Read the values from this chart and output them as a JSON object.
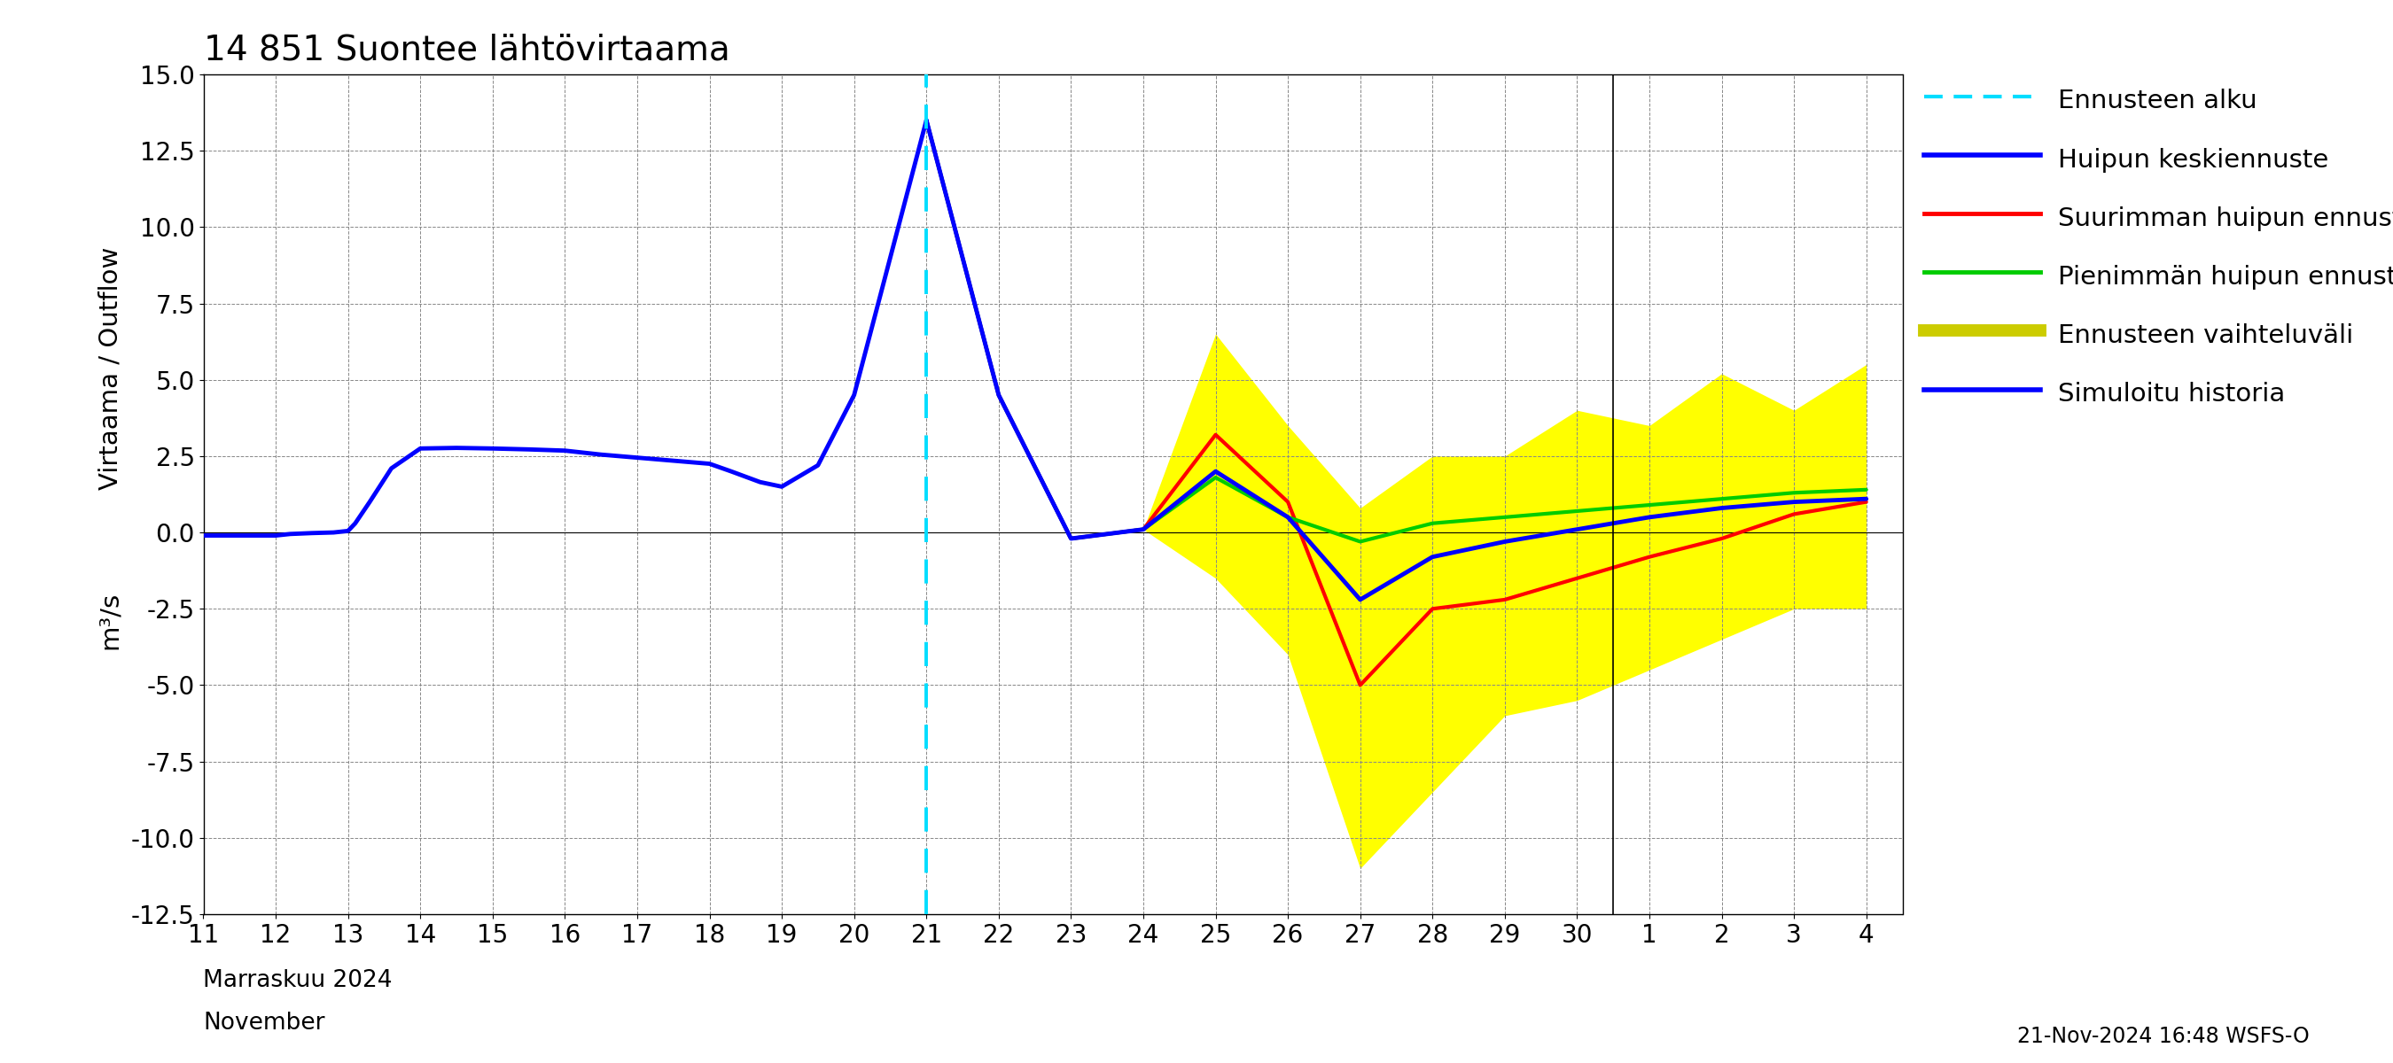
{
  "title": "14 851 Suontee lähtövirtaama",
  "ylabel1": "Virtaama / Outflow",
  "ylabel2": "m³/s",
  "xlabel_line1": "Marraskuu 2024",
  "xlabel_line2": "November",
  "bottom_right_text": "21-Nov-2024 16:48 WSFS-O",
  "ylim": [
    -12.5,
    15.0
  ],
  "yticks": [
    -12.5,
    -10.0,
    -7.5,
    -5.0,
    -2.5,
    0.0,
    2.5,
    5.0,
    7.5,
    10.0,
    12.5,
    15.0
  ],
  "forecast_start_x": 21,
  "legend_entries": [
    "Ennusteen alku",
    "Huipun keskiennuste",
    "Suurimman huipun ennuste",
    "Pienimmän huipun ennuste",
    "Ennusteen vaihteluväli",
    "Simuloitu historia"
  ],
  "history_color": "#0000ff",
  "mean_forecast_color": "#0000ff",
  "max_forecast_color": "#ff0000",
  "min_forecast_color": "#00cc00",
  "range_fill_color": "#ffff00",
  "forecast_start_color": "#00ddff",
  "hist_x": [
    11,
    11.2,
    11.5,
    11.8,
    12.0,
    12.2,
    12.5,
    12.8,
    13.0,
    13.1,
    13.3,
    13.6,
    14.0,
    14.5,
    15.0,
    15.5,
    16.0,
    16.5,
    17.0,
    17.5,
    18.0,
    18.3,
    18.7,
    19.0,
    19.5,
    20.0,
    20.5,
    21.0
  ],
  "hist_y": [
    -0.1,
    -0.1,
    -0.1,
    -0.1,
    -0.1,
    -0.05,
    -0.02,
    0.0,
    0.05,
    0.3,
    1.0,
    2.1,
    2.75,
    2.77,
    2.75,
    2.72,
    2.68,
    2.55,
    2.45,
    2.35,
    2.25,
    2.0,
    1.65,
    1.5,
    2.2,
    4.5,
    9.0,
    13.5
  ],
  "fcast_x": [
    21,
    22,
    23,
    24,
    25,
    26,
    27,
    28,
    29,
    30,
    31,
    32,
    33,
    34
  ],
  "mean_y": [
    13.5,
    4.5,
    -0.2,
    0.1,
    2.0,
    0.5,
    -2.2,
    -0.8,
    -0.3,
    0.1,
    0.5,
    0.8,
    1.0,
    1.1
  ],
  "max_y": [
    13.5,
    4.5,
    -0.2,
    0.1,
    3.2,
    1.0,
    -5.0,
    -2.5,
    -2.2,
    -1.5,
    -0.8,
    -0.2,
    0.6,
    1.0
  ],
  "min_y": [
    13.5,
    4.5,
    -0.2,
    0.1,
    1.8,
    0.5,
    -0.3,
    0.3,
    0.5,
    0.7,
    0.9,
    1.1,
    1.3,
    1.4
  ],
  "upper_y": [
    13.5,
    4.5,
    -0.2,
    0.1,
    6.5,
    3.5,
    0.8,
    2.5,
    2.5,
    4.0,
    3.5,
    5.2,
    4.0,
    5.5
  ],
  "lower_y": [
    13.5,
    4.5,
    -0.2,
    0.1,
    -1.5,
    -4.0,
    -11.0,
    -8.5,
    -6.0,
    -5.5,
    -4.5,
    -3.5,
    -2.5,
    -2.5
  ],
  "dec_sep_x": 30.5,
  "xlim": [
    11,
    34.5
  ]
}
